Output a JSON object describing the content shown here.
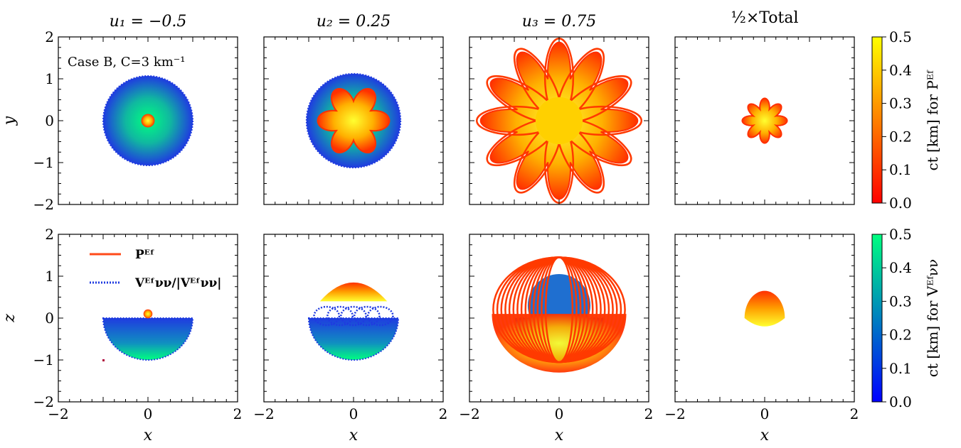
{
  "chart_data": {
    "type": "scatter",
    "column_titles": [
      "u₁ = −0.5",
      "u₂ = 0.25",
      "u₃ = 0.75",
      "½×Total"
    ],
    "row_ylabels": [
      "y",
      "z"
    ],
    "xlabel": "x",
    "xlim": [
      -2,
      2
    ],
    "ylim": [
      -2,
      2
    ],
    "xticks": [
      "−2",
      "0",
      "2"
    ],
    "yticks": [
      "−2",
      "−1",
      "0",
      "1",
      "2"
    ],
    "annotation": "Case B, C=3 km⁻¹",
    "legend": {
      "placement": "top-left",
      "entries": [
        {
          "label": "Pᴱᶠ",
          "color": "#ff4a1a",
          "style": "solid"
        },
        {
          "label": "Vᴱᶠνν/|Vᴱᶠνν|",
          "color": "#1f3be0",
          "style": "dotted"
        }
      ]
    },
    "colorbars": [
      {
        "label": "ct [km] for Pᴱᶠ",
        "range": [
          0,
          0.5
        ],
        "ticks": [
          "0.0",
          "0.1",
          "0.2",
          "0.3",
          "0.4",
          "0.5"
        ],
        "colors": [
          "#ff0000",
          "#ffff00"
        ]
      },
      {
        "label": "ct [km] for Vᴱᶠνν",
        "range": [
          0,
          0.5
        ],
        "ticks": [
          "0.0",
          "0.1",
          "0.2",
          "0.3",
          "0.4",
          "0.5"
        ],
        "colors": [
          "#0000ff",
          "#00ff80"
        ]
      }
    ],
    "panels": [
      {
        "row": "xy",
        "col": 0,
        "V_radius": 1.0,
        "P_extent": 0.15,
        "P_loops": 0
      },
      {
        "row": "xy",
        "col": 1,
        "V_radius": 1.05,
        "P_extent": 0.8,
        "P_loops": 6
      },
      {
        "row": "xy",
        "col": 2,
        "V_radius": 1.0,
        "P_extent": 1.75,
        "P_loops": 12
      },
      {
        "row": "xy",
        "col": 3,
        "V_radius": 0,
        "P_extent": 0.5,
        "P_loops": 8
      },
      {
        "row": "xz",
        "col": 0,
        "V_radius": 1.0,
        "P_extent": 0.1,
        "P_loops": 0
      },
      {
        "row": "xz",
        "col": 1,
        "V_radius": 1.0,
        "P_extent": 0.75,
        "P_loops": 0
      },
      {
        "row": "xz",
        "col": 2,
        "V_radius": 1.0,
        "P_extent": 1.5,
        "P_loops": 14
      },
      {
        "row": "xz",
        "col": 3,
        "V_radius": 0,
        "P_extent": 0.65,
        "P_loops": 0
      }
    ]
  }
}
